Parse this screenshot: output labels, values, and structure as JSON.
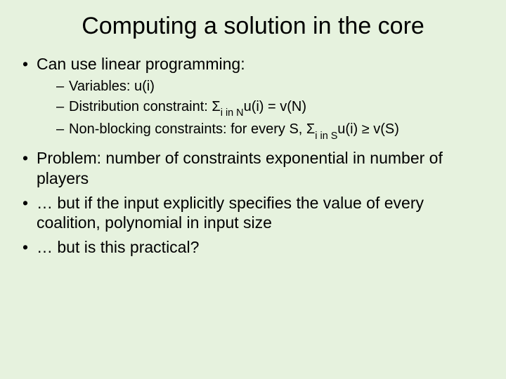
{
  "background_color": "#e6f2de",
  "text_color": "#000000",
  "title": "Computing a solution in the core",
  "title_fontsize": 34,
  "bullets": {
    "l1_0": "Can use linear programming:",
    "l2_0": "Variables: u(i)",
    "l2_1_pre": "Distribution constraint: Σ",
    "l2_1_sub": "i in N",
    "l2_1_post": "u(i) = v(N)",
    "l2_2_pre": "Non-blocking constraints: for every S, Σ",
    "l2_2_sub": "i in S",
    "l2_2_post": "u(i) ≥ v(S)",
    "l1_1": "Problem: number of constraints exponential in number of players",
    "l1_2": "… but if the input explicitly specifies the value of every coalition, polynomial in input size",
    "l1_3": "… but is this practical?"
  },
  "level1_fontsize": 23,
  "level2_fontsize": 20
}
